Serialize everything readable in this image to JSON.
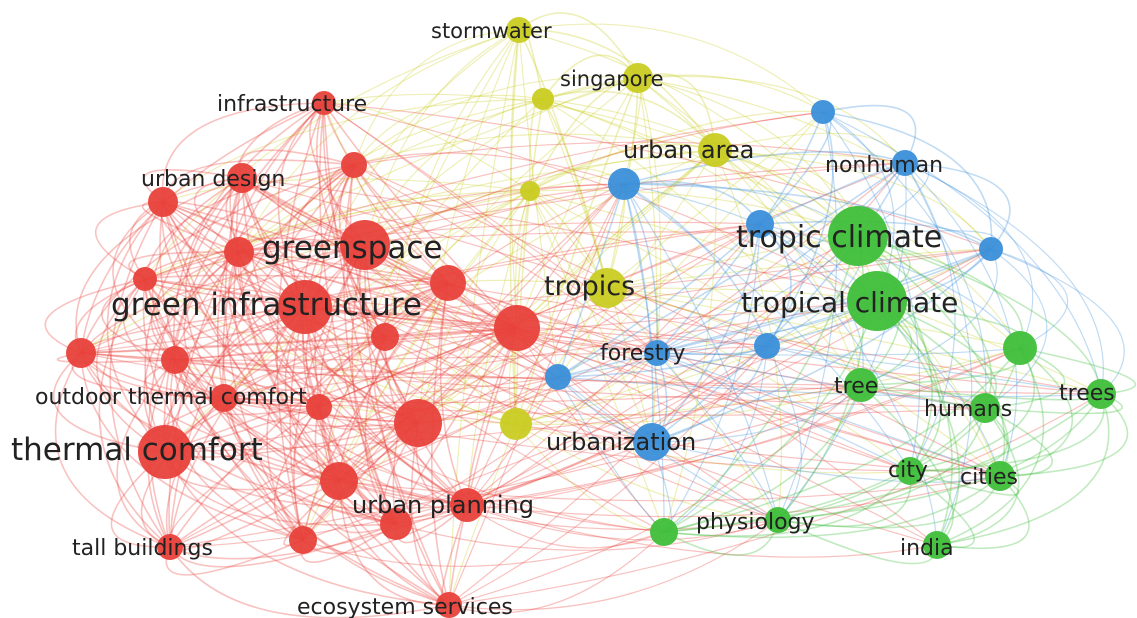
{
  "clusters": {
    "red": "#e8413b",
    "yellow": "#c9cc22",
    "green": "#3fbf3a",
    "blue": "#3a8fd9"
  },
  "nodes": [
    {
      "id": "stormwater",
      "label": "stormwater",
      "cluster": "yellow"
    },
    {
      "id": "singapore",
      "label": "singapore",
      "cluster": "yellow"
    },
    {
      "id": "y3",
      "label": "",
      "cluster": "yellow"
    },
    {
      "id": "urban-area",
      "label": "urban area",
      "cluster": "yellow"
    },
    {
      "id": "y5",
      "label": "",
      "cluster": "yellow"
    },
    {
      "id": "tropics",
      "label": "tropics",
      "cluster": "yellow"
    },
    {
      "id": "y7",
      "label": "",
      "cluster": "yellow"
    },
    {
      "id": "infrastructure",
      "label": "infrastructure",
      "cluster": "red"
    },
    {
      "id": "urban-design",
      "label": "urban design",
      "cluster": "red"
    },
    {
      "id": "r3",
      "label": "",
      "cluster": "red"
    },
    {
      "id": "r4",
      "label": "",
      "cluster": "red"
    },
    {
      "id": "greenspace",
      "label": "greenspace",
      "cluster": "red"
    },
    {
      "id": "r6",
      "label": "",
      "cluster": "red"
    },
    {
      "id": "r7",
      "label": "",
      "cluster": "red"
    },
    {
      "id": "r8",
      "label": "",
      "cluster": "red"
    },
    {
      "id": "green-infrastructure",
      "label": "green infrastructure",
      "cluster": "red"
    },
    {
      "id": "r10",
      "label": "",
      "cluster": "red"
    },
    {
      "id": "r11",
      "label": "",
      "cluster": "red"
    },
    {
      "id": "r12",
      "label": "",
      "cluster": "red"
    },
    {
      "id": "r13",
      "label": "",
      "cluster": "red"
    },
    {
      "id": "outdoor-thermal-comfort",
      "label": "outdoor thermal comfort",
      "cluster": "red"
    },
    {
      "id": "r15",
      "label": "",
      "cluster": "red"
    },
    {
      "id": "r16",
      "label": "",
      "cluster": "red"
    },
    {
      "id": "thermal-comfort",
      "label": "thermal comfort",
      "cluster": "red"
    },
    {
      "id": "r18",
      "label": "",
      "cluster": "red"
    },
    {
      "id": "urban-planning",
      "label": "urban planning",
      "cluster": "red"
    },
    {
      "id": "r20",
      "label": "",
      "cluster": "red"
    },
    {
      "id": "r21",
      "label": "",
      "cluster": "red"
    },
    {
      "id": "tall-buildings",
      "label": "tall buildings",
      "cluster": "red"
    },
    {
      "id": "ecosystem-services",
      "label": "ecosystem services",
      "cluster": "red"
    },
    {
      "id": "b1",
      "label": "",
      "cluster": "blue"
    },
    {
      "id": "nonhuman",
      "label": "nonhuman",
      "cluster": "blue"
    },
    {
      "id": "b3",
      "label": "",
      "cluster": "blue"
    },
    {
      "id": "b4",
      "label": "",
      "cluster": "blue"
    },
    {
      "id": "b5",
      "label": "",
      "cluster": "blue"
    },
    {
      "id": "forestry",
      "label": "forestry",
      "cluster": "blue"
    },
    {
      "id": "b7",
      "label": "",
      "cluster": "blue"
    },
    {
      "id": "b8",
      "label": "",
      "cluster": "blue"
    },
    {
      "id": "urbanization",
      "label": "urbanization",
      "cluster": "blue"
    },
    {
      "id": "tropic-climate",
      "label": "tropic climate",
      "cluster": "green"
    },
    {
      "id": "tropical-climate",
      "label": "tropical climate",
      "cluster": "green"
    },
    {
      "id": "g3",
      "label": "",
      "cluster": "green"
    },
    {
      "id": "tree",
      "label": "tree",
      "cluster": "green"
    },
    {
      "id": "trees",
      "label": "trees",
      "cluster": "green"
    },
    {
      "id": "humans",
      "label": "humans",
      "cluster": "green"
    },
    {
      "id": "city",
      "label": "city",
      "cluster": "green"
    },
    {
      "id": "cities",
      "label": "cities",
      "cluster": "green"
    },
    {
      "id": "physiology",
      "label": "physiology",
      "cluster": "green"
    },
    {
      "id": "india",
      "label": "india",
      "cluster": "green"
    },
    {
      "id": "g10",
      "label": "",
      "cluster": "green"
    }
  ]
}
